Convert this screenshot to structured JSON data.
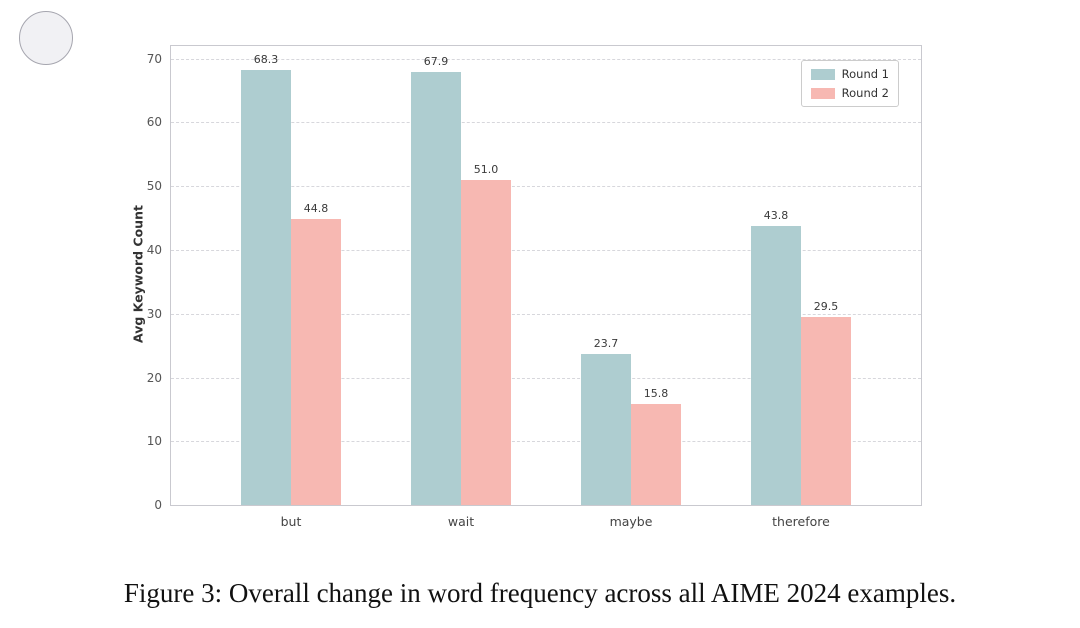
{
  "chart_data": {
    "type": "bar",
    "categories": [
      "but",
      "wait",
      "maybe",
      "therefore"
    ],
    "series": [
      {
        "name": "Round 1",
        "color": "#aecdd0",
        "values": [
          68.3,
          67.9,
          23.7,
          43.8
        ]
      },
      {
        "name": "Round 2",
        "color": "#f7b8b2",
        "values": [
          44.8,
          51.0,
          15.8,
          29.5
        ]
      }
    ],
    "title": "",
    "xlabel": "",
    "ylabel": "Avg Keyword Count",
    "yticks": [
      0,
      10,
      20,
      30,
      40,
      50,
      60,
      70
    ],
    "ylim": [
      0,
      72
    ],
    "grid": "horizontal-dashed",
    "legend_position": "upper right",
    "value_labels": true
  },
  "caption": "Figure 3: Overall change in word frequency across all AIME 2024 examples."
}
